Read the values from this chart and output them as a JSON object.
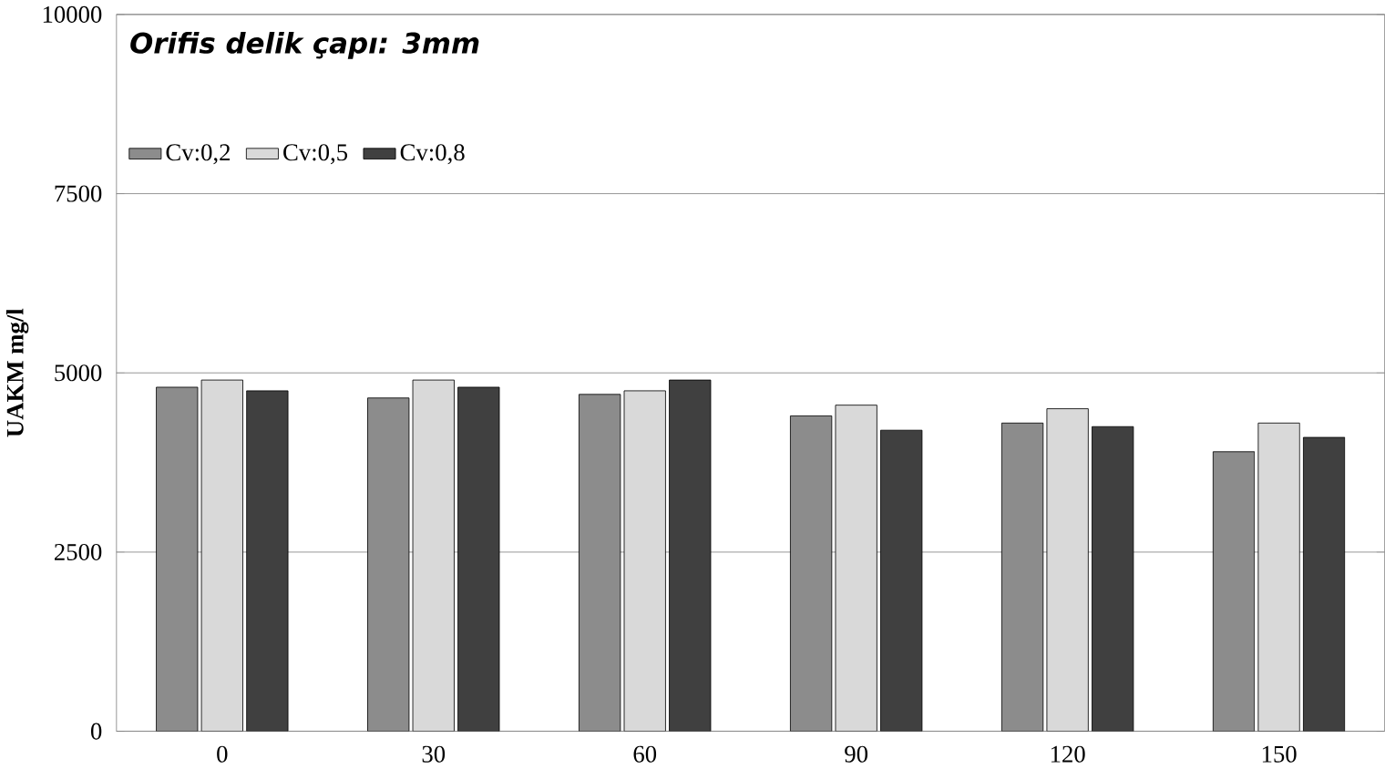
{
  "chart_data": {
    "type": "bar",
    "title": "Orifis delik çapı: 3mm",
    "ylabel": "UAKM mg/l",
    "categories": [
      "0",
      "30",
      "60",
      "90",
      "120",
      "150"
    ],
    "series": [
      {
        "name": "Cv:0,2",
        "color": "#8c8c8c",
        "values": [
          4800,
          4650,
          4700,
          4400,
          4300,
          3900
        ]
      },
      {
        "name": "Cv:0,5",
        "color": "#d9d9d9",
        "values": [
          4900,
          4900,
          4750,
          4550,
          4500,
          4300
        ]
      },
      {
        "name": "Cv:0,8",
        "color": "#404040",
        "values": [
          4750,
          4800,
          4900,
          4200,
          4250,
          4100
        ]
      }
    ],
    "ylim": [
      0,
      10000
    ],
    "yticks": [
      0,
      2500,
      5000,
      7500,
      10000
    ],
    "grid": "y",
    "legend": "top left"
  }
}
